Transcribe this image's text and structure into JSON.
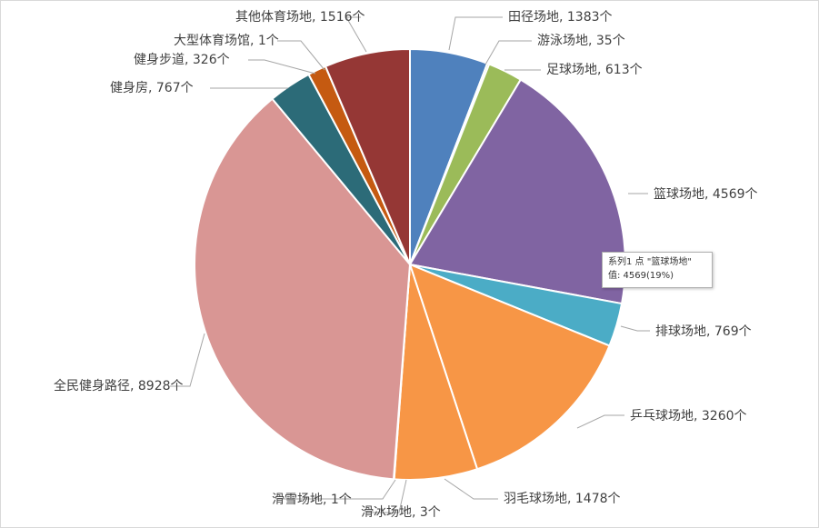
{
  "chart_data": {
    "type": "pie",
    "title": "",
    "series_name": "系列1",
    "categories": [
      "田径场地",
      "游泳场地",
      "足球场地",
      "篮球场地",
      "排球场地",
      "乒乓球场地",
      "羽毛球场地",
      "滑冰场地",
      "滑雪场地",
      "全民健身路径",
      "健身房",
      "健身步道",
      "大型体育场馆",
      "其他体育场地"
    ],
    "values": [
      1383,
      35,
      613,
      4569,
      769,
      3260,
      1478,
      3,
      1,
      8928,
      767,
      326,
      1,
      1516
    ],
    "unit": "个",
    "labels": [
      "田径场地, 1383个",
      "游泳场地, 35个",
      "足球场地, 613个",
      "篮球场地, 4569个",
      "排球场地, 769个",
      "乒乓球场地, 3260个",
      "羽毛球场地, 1478个",
      "滑冰场地, 3个",
      "滑雪场地, 1个",
      "全民健身路径, 8928个",
      "健身房, 767个",
      "健身步道, 326个",
      "大型体育场馆, 1个",
      "其他体育场地, 1516个"
    ],
    "colors": [
      "#4f81bd",
      "#9bbb59",
      "#9bbb59",
      "#8064a2",
      "#4bacc6",
      "#f79646",
      "#f79646",
      "#b2a1c7",
      "#b2a1c7",
      "#d99694",
      "#2c6b78",
      "#c55a11",
      "#c55a11",
      "#953735"
    ],
    "legend": "none",
    "start_angle_deg": 0,
    "direction": "clockwise"
  },
  "tooltip": {
    "line1": "系列1 点 \"篮球场地\"",
    "line2": "值: 4569(19%)"
  }
}
